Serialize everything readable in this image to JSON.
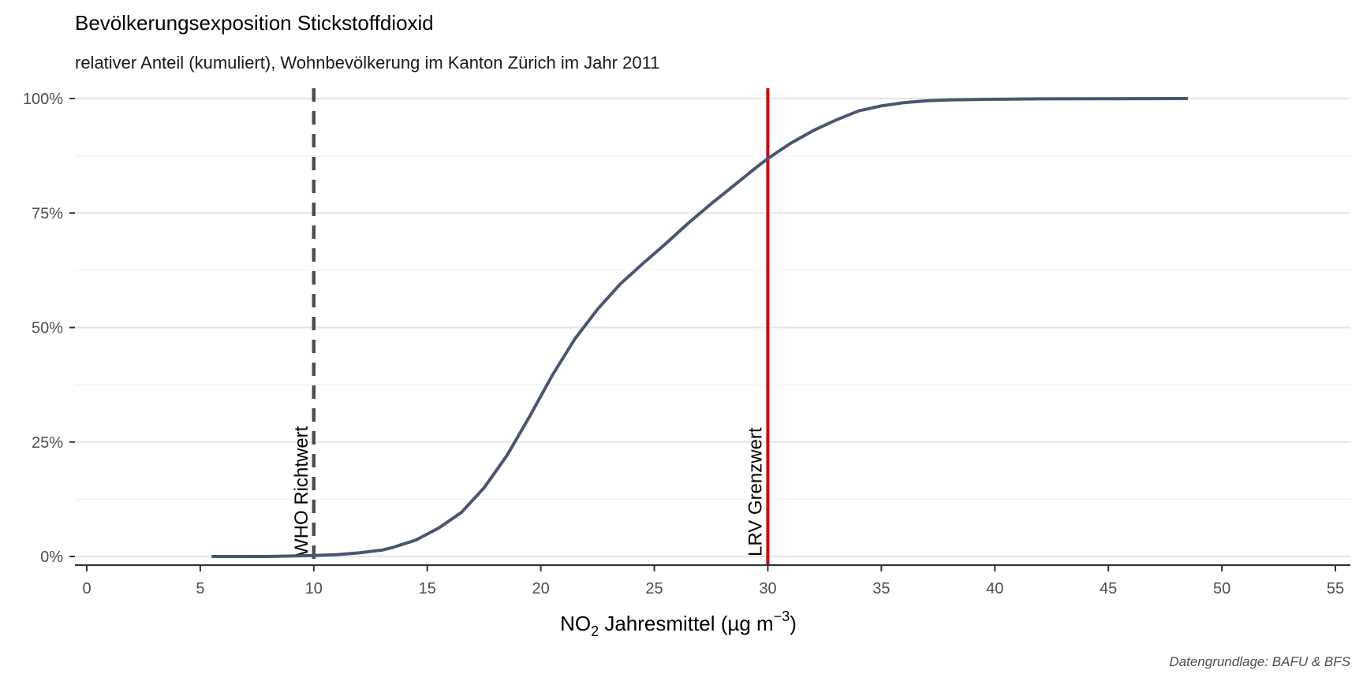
{
  "chart_data": {
    "type": "line",
    "title": "Bevölkerungsexposition Stickstoffdioxid",
    "subtitle": "relativer Anteil (kumuliert), Wohnbevölkerung im Kanton Zürich im Jahr 2011",
    "xlabel_parts": {
      "pre": "NO",
      "sub": "2",
      "mid": " Jahresmittel (µg m",
      "sup": "−3",
      "post": ")"
    },
    "ylabel": "",
    "caption": "Datengrundlage: BAFU & BFS",
    "xlim": [
      0,
      55
    ],
    "ylim": [
      0,
      100
    ],
    "x_ticks": [
      0,
      5,
      10,
      15,
      20,
      25,
      30,
      35,
      40,
      45,
      50,
      55
    ],
    "x_tick_labels": [
      "0",
      "5",
      "10",
      "15",
      "20",
      "25",
      "30",
      "35",
      "40",
      "45",
      "50",
      "55"
    ],
    "y_ticks": [
      0,
      25,
      50,
      75,
      100
    ],
    "y_tick_labels": [
      "0%",
      "25%",
      "50%",
      "75%",
      "100%"
    ],
    "grid": true,
    "series": [
      {
        "color": "#4a5670",
        "x": [
          5.5,
          8,
          10,
          11,
          12,
          13,
          13.5,
          14.5,
          15.5,
          16.5,
          17.5,
          18.5,
          19.5,
          20.5,
          21.5,
          22.5,
          23.5,
          24.5,
          25.5,
          26.5,
          27.5,
          28.5,
          29.5,
          30,
          31,
          32,
          33,
          34,
          35,
          36,
          37,
          38,
          40,
          42,
          45,
          48.5
        ],
        "y": [
          0,
          0,
          0.2,
          0.4,
          0.8,
          1.4,
          2,
          3.6,
          6.2,
          9.6,
          15,
          22,
          30.5,
          39.5,
          47.5,
          54,
          59.5,
          64,
          68.3,
          72.8,
          77,
          81,
          85,
          86.9,
          90.2,
          93,
          95.3,
          97.3,
          98.4,
          99.1,
          99.5,
          99.7,
          99.85,
          99.93,
          99.97,
          100
        ]
      }
    ],
    "reference_lines": [
      {
        "x": 10,
        "label": "WHO Richtwert",
        "color": "#4d4d4d",
        "style": "dashed"
      },
      {
        "x": 30,
        "label": "LRV Grenzwert",
        "color": "#cc0000",
        "style": "solid"
      }
    ]
  }
}
